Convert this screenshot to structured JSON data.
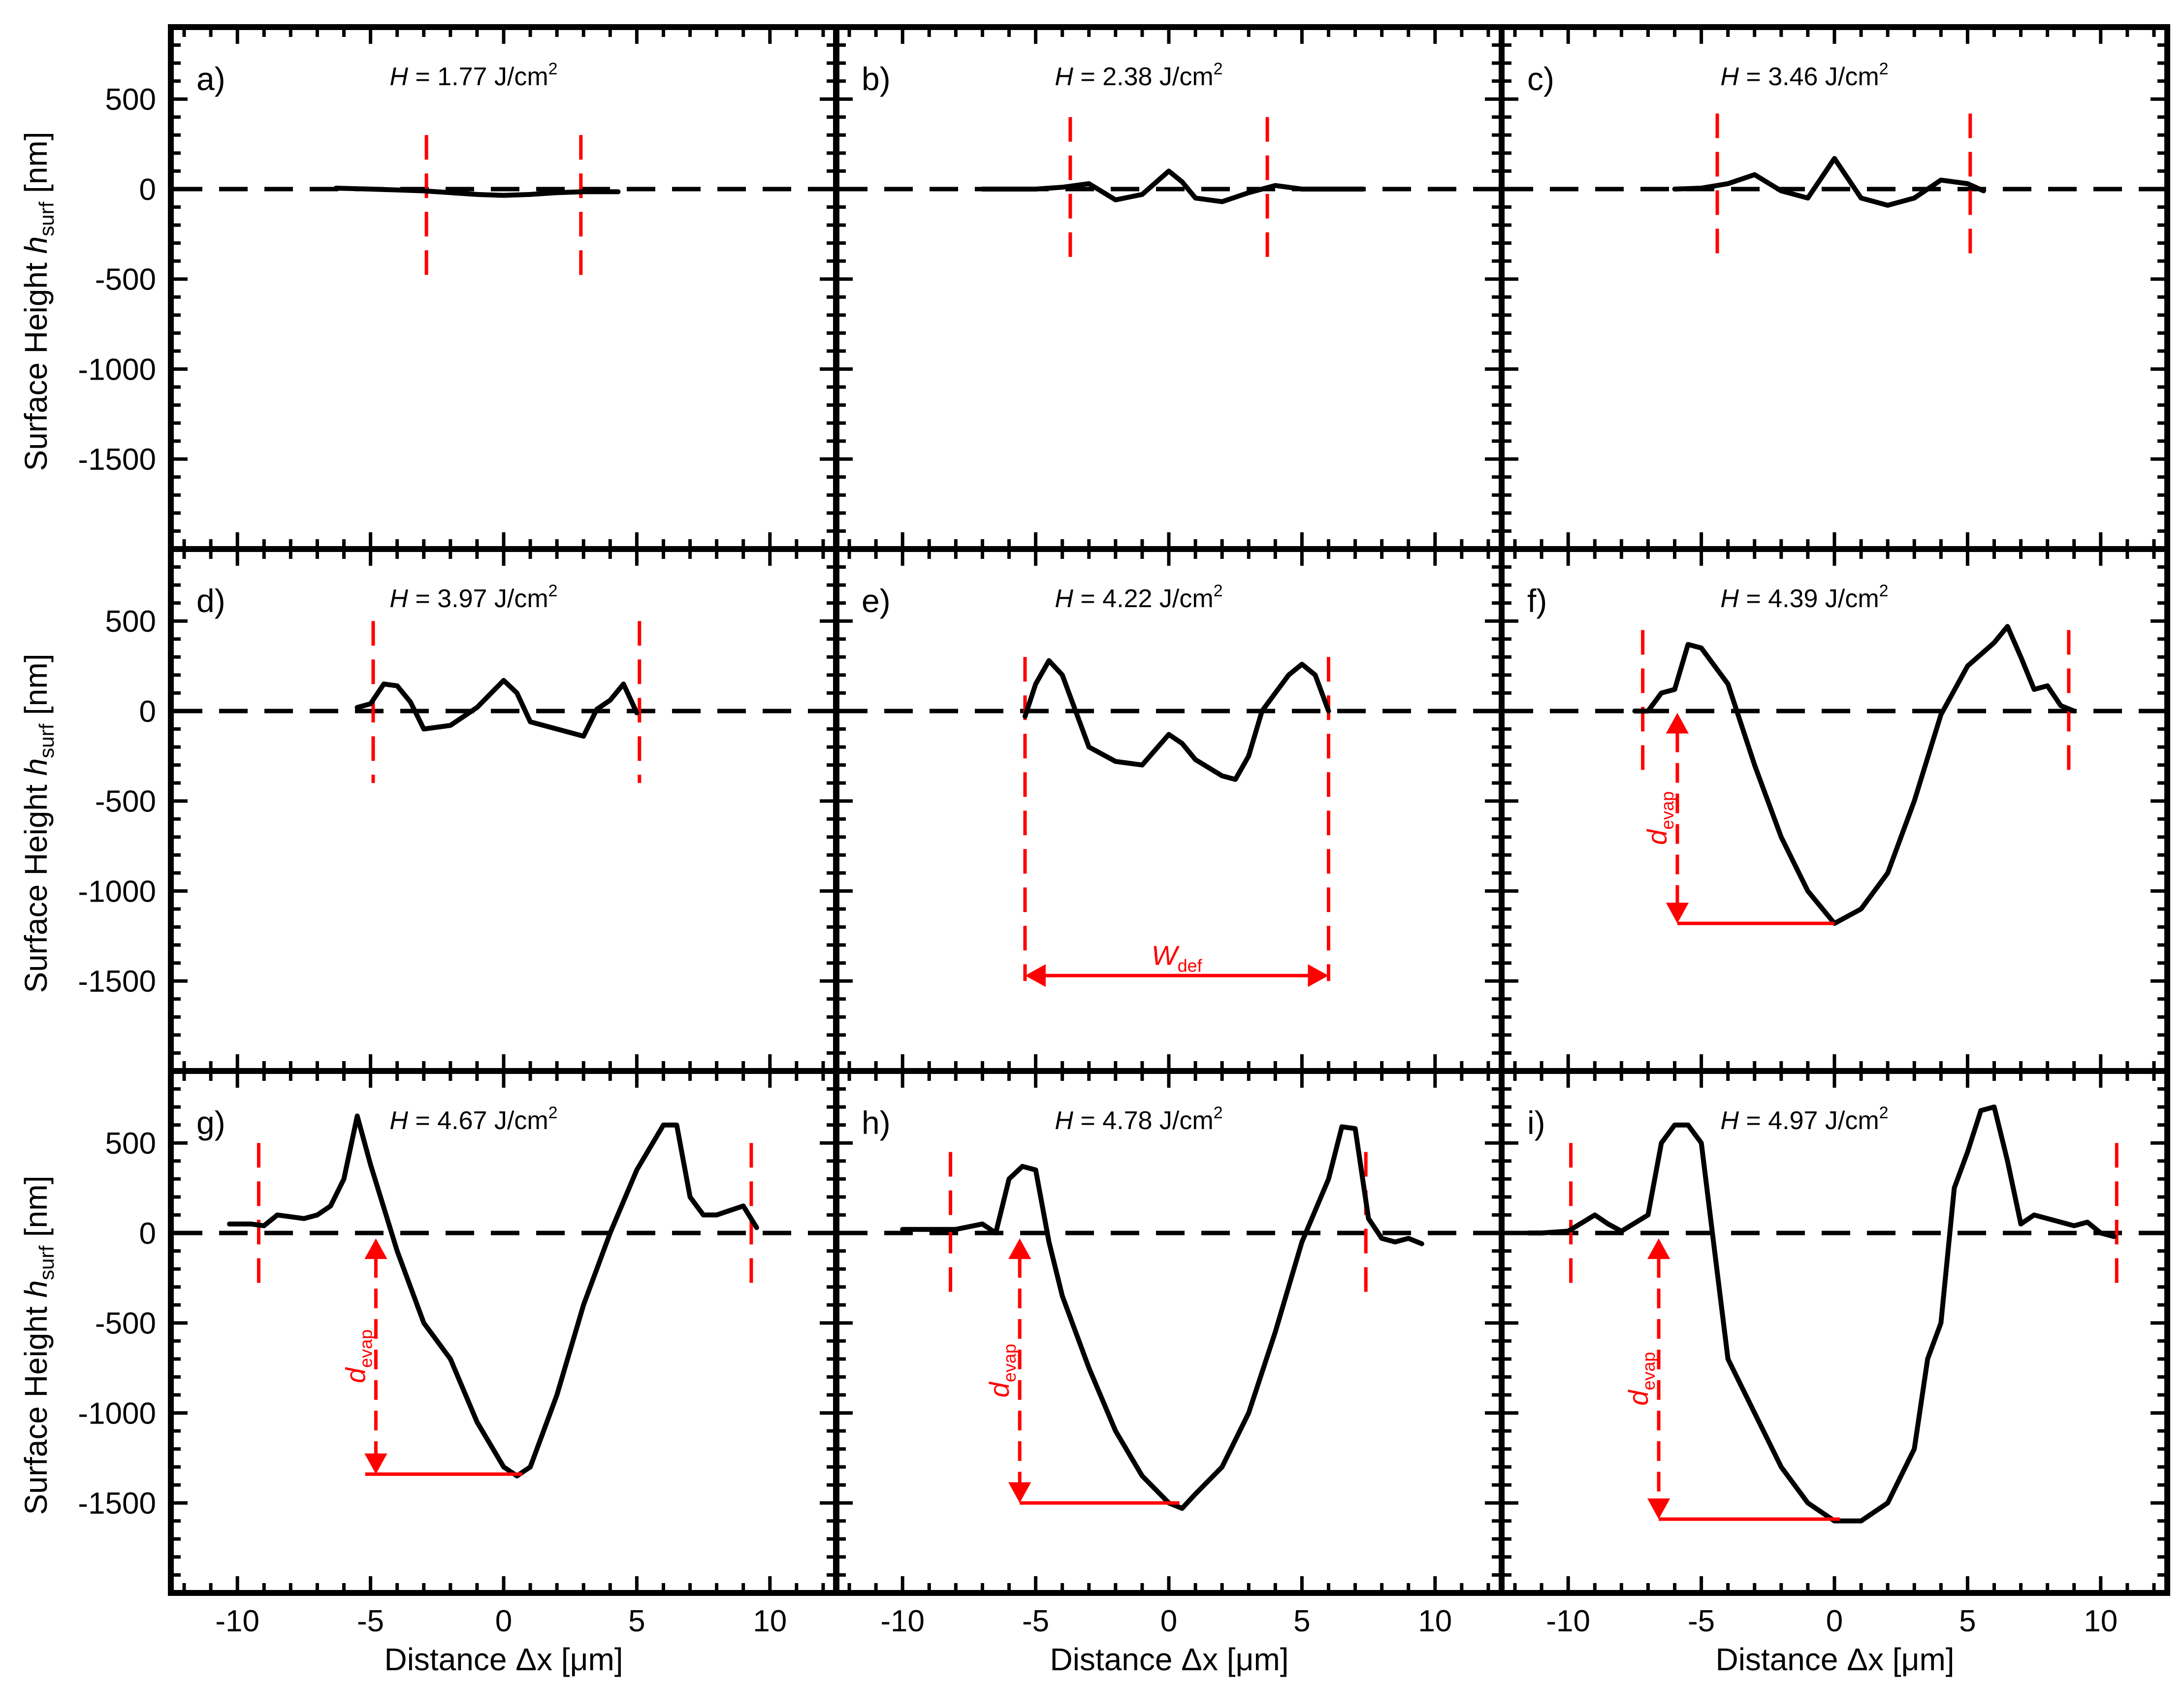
{
  "figure": {
    "ylabel_main": "Surface Height ",
    "ylabel_italic": "h",
    "ylabel_sub": "surf",
    "ylabel_unit": " [nm]",
    "xlabel_main": "Distance Δx [",
    "xlabel_mu": "μ",
    "xlabel_unit": "m]",
    "fluence_symbol": "H",
    "fluence_unit": " J/cm",
    "fluence_exp": "2",
    "w_def_main": "W",
    "w_def_sub": "def",
    "d_evap_main": "d",
    "d_evap_sub": "evap",
    "colors": {
      "profile": "#000000",
      "annotation": "#ff0000",
      "frame": "#000000",
      "zero_line": "#000000"
    }
  },
  "chart_data": [
    {
      "type": "line",
      "panel": "a)",
      "fluence": "1.77",
      "xlim": [
        -12.5,
        12.5
      ],
      "ylim": [
        -2000,
        900
      ],
      "xticks": [
        "-10",
        "-5",
        "0",
        "5",
        "10"
      ],
      "yticks": [
        "500",
        "0",
        "-500",
        "-1000",
        "-1500"
      ],
      "zero_line": 0,
      "edges": [
        -2.9,
        2.9
      ],
      "edge_span": [
        -500,
        300
      ],
      "series": [
        {
          "x": [
            -6.3,
            -5,
            -4,
            -3,
            -2,
            -1,
            0,
            1,
            2,
            3,
            4.3
          ],
          "y": [
            5,
            0,
            -5,
            -10,
            -20,
            -30,
            -35,
            -30,
            -20,
            -15,
            -15
          ]
        }
      ]
    },
    {
      "type": "line",
      "panel": "b)",
      "fluence": "2.38",
      "xlim": [
        -12.5,
        12.5
      ],
      "ylim": [
        -2000,
        900
      ],
      "xticks": [
        "-10",
        "-5",
        "0",
        "5",
        "10"
      ],
      "yticks": [
        "500",
        "0",
        "-500",
        "-1000",
        "-1500"
      ],
      "zero_line": 0,
      "edges": [
        -3.7,
        3.7
      ],
      "edge_span": [
        -400,
        400
      ],
      "series": [
        {
          "x": [
            -7,
            -5,
            -4,
            -3,
            -2,
            -1,
            0,
            0.5,
            1,
            2,
            3,
            4,
            5,
            6,
            7.3
          ],
          "y": [
            0,
            0,
            10,
            30,
            -60,
            -30,
            100,
            40,
            -50,
            -70,
            -20,
            20,
            0,
            0,
            0
          ]
        }
      ]
    },
    {
      "type": "line",
      "panel": "c)",
      "fluence": "3.46",
      "xlim": [
        -12.5,
        12.5
      ],
      "ylim": [
        -2000,
        900
      ],
      "xticks": [
        "-10",
        "-5",
        "0",
        "5",
        "10"
      ],
      "yticks": [
        "500",
        "0",
        "-500",
        "-1000",
        "-1500"
      ],
      "zero_line": 0,
      "edges": [
        -4.4,
        5.1
      ],
      "edge_span": [
        -400,
        420
      ],
      "series": [
        {
          "x": [
            -6,
            -5,
            -4,
            -3,
            -2,
            -1,
            0,
            1,
            2,
            3,
            4,
            5,
            5.6
          ],
          "y": [
            0,
            5,
            30,
            80,
            -10,
            -50,
            170,
            -50,
            -90,
            -50,
            50,
            30,
            -10
          ]
        }
      ]
    },
    {
      "type": "line",
      "panel": "d)",
      "fluence": "3.97",
      "xlim": [
        -12.5,
        12.5
      ],
      "ylim": [
        -2000,
        900
      ],
      "xticks": [
        "-10",
        "-5",
        "0",
        "5",
        "10"
      ],
      "yticks": [
        "500",
        "0",
        "-500",
        "-1000",
        "-1500"
      ],
      "zero_line": 0,
      "edges": [
        -4.9,
        5.1
      ],
      "edge_span": [
        -400,
        500
      ],
      "series": [
        {
          "x": [
            -5.5,
            -5,
            -4.5,
            -4,
            -3.5,
            -3,
            -2,
            -1,
            0,
            0.5,
            1,
            2,
            3,
            3.5,
            4,
            4.5,
            5
          ],
          "y": [
            20,
            40,
            150,
            140,
            50,
            -100,
            -80,
            20,
            170,
            100,
            -60,
            -100,
            -140,
            10,
            60,
            150,
            -10
          ]
        }
      ]
    },
    {
      "type": "line",
      "panel": "e)",
      "fluence": "4.22",
      "xlim": [
        -12.5,
        12.5
      ],
      "ylim": [
        -2000,
        900
      ],
      "xticks": [
        "-10",
        "-5",
        "0",
        "5",
        "10"
      ],
      "yticks": [
        "500",
        "0",
        "-500",
        "-1000",
        "-1500"
      ],
      "zero_line": 0,
      "edges": [
        -5.4,
        6.0
      ],
      "edge_span": [
        -1500,
        300
      ],
      "series": [
        {
          "x": [
            -5.4,
            -5,
            -4.5,
            -4,
            -3,
            -2,
            -1,
            0,
            0.5,
            1,
            2,
            2.5,
            3,
            3.5,
            4,
            4.5,
            5,
            5.5,
            6
          ],
          "y": [
            -30,
            150,
            280,
            200,
            -200,
            -280,
            -300,
            -130,
            -180,
            -270,
            -360,
            -380,
            -250,
            0,
            100,
            200,
            260,
            200,
            0
          ]
        }
      ]
    },
    {
      "type": "line",
      "panel": "f)",
      "fluence": "4.39",
      "xlim": [
        -12.5,
        12.5
      ],
      "ylim": [
        -2000,
        900
      ],
      "xticks": [
        "-10",
        "-5",
        "0",
        "5",
        "10"
      ],
      "yticks": [
        "500",
        "0",
        "-500",
        "-1000",
        "-1500"
      ],
      "zero_line": 0,
      "edges": [
        -7.2,
        8.8
      ],
      "edge_span": [
        -400,
        450
      ],
      "series": [
        {
          "x": [
            -7.5,
            -7,
            -6.5,
            -6,
            -5.5,
            -5,
            -4,
            -3,
            -2,
            -1,
            0,
            1,
            2,
            3,
            4,
            5,
            6,
            6.5,
            7,
            7.5,
            8,
            8.5,
            9
          ],
          "y": [
            0,
            0,
            100,
            120,
            370,
            350,
            150,
            -300,
            -700,
            -1000,
            -1180,
            -1100,
            -900,
            -500,
            -20,
            250,
            380,
            470,
            300,
            120,
            140,
            30,
            0
          ]
        }
      ]
    },
    {
      "type": "line",
      "panel": "g)",
      "fluence": "4.67",
      "xlim": [
        -12.5,
        12.5
      ],
      "ylim": [
        -2000,
        900
      ],
      "xticks": [
        "-10",
        "-5",
        "0",
        "5",
        "10"
      ],
      "yticks": [
        "500",
        "0",
        "-500",
        "-1000",
        "-1500"
      ],
      "zero_line": 0,
      "edges": [
        -9.2,
        9.3
      ],
      "edge_span": [
        -350,
        500
      ],
      "series": [
        {
          "x": [
            -10.3,
            -9.5,
            -9,
            -8.5,
            -7.5,
            -7,
            -6.5,
            -6,
            -5.5,
            -5,
            -4,
            -3,
            -2,
            -1,
            0,
            0.5,
            1,
            2,
            3,
            4,
            5,
            6,
            6.5,
            7,
            7.5,
            8,
            9,
            9.5
          ],
          "y": [
            50,
            50,
            40,
            100,
            80,
            100,
            150,
            300,
            650,
            380,
            -100,
            -500,
            -700,
            -1050,
            -1300,
            -1350,
            -1300,
            -900,
            -400,
            0,
            350,
            600,
            600,
            200,
            100,
            100,
            150,
            30
          ]
        }
      ]
    },
    {
      "type": "line",
      "panel": "h)",
      "fluence": "4.78",
      "xlim": [
        -12.5,
        12.5
      ],
      "ylim": [
        -2000,
        900
      ],
      "xticks": [
        "-10",
        "-5",
        "0",
        "5",
        "10"
      ],
      "yticks": [
        "500",
        "0",
        "-500",
        "-1000",
        "-1500"
      ],
      "zero_line": 0,
      "edges": [
        -8.2,
        7.4
      ],
      "edge_span": [
        -400,
        450
      ],
      "series": [
        {
          "x": [
            -10,
            -9,
            -8,
            -7,
            -6.5,
            -6,
            -5.5,
            -5,
            -4.5,
            -4,
            -3,
            -2,
            -1,
            0,
            0.5,
            1,
            2,
            3,
            4,
            5,
            6,
            6.5,
            7,
            7.5,
            8,
            8.5,
            9,
            9.5
          ],
          "y": [
            20,
            20,
            20,
            50,
            0,
            300,
            370,
            350,
            -50,
            -350,
            -750,
            -1100,
            -1350,
            -1500,
            -1530,
            -1450,
            -1300,
            -1000,
            -550,
            -50,
            300,
            590,
            580,
            80,
            -30,
            -50,
            -30,
            -60
          ]
        }
      ]
    },
    {
      "type": "line",
      "panel": "i)",
      "fluence": "4.97",
      "xlim": [
        -12.5,
        12.5
      ],
      "ylim": [
        -2000,
        900
      ],
      "xticks": [
        "-10",
        "-5",
        "0",
        "5",
        "10"
      ],
      "yticks": [
        "500",
        "0",
        "-500",
        "-1000",
        "-1500"
      ],
      "zero_line": 0,
      "edges": [
        -9.9,
        10.6
      ],
      "edge_span": [
        -350,
        500
      ],
      "series": [
        {
          "x": [
            -11.5,
            -11,
            -10,
            -9,
            -8.5,
            -8,
            -7,
            -6.5,
            -6,
            -5.5,
            -5,
            -4.5,
            -4,
            -3,
            -2,
            -1,
            0,
            1,
            2,
            3,
            3.5,
            4,
            4.5,
            5,
            5.5,
            6,
            6.5,
            7,
            7.5,
            8,
            9,
            9.5,
            10,
            10.5
          ],
          "y": [
            0,
            0,
            10,
            100,
            50,
            10,
            100,
            500,
            600,
            600,
            500,
            -100,
            -700,
            -1000,
            -1300,
            -1500,
            -1600,
            -1600,
            -1500,
            -1200,
            -700,
            -500,
            250,
            450,
            680,
            700,
            400,
            50,
            100,
            80,
            40,
            60,
            0,
            -20
          ]
        }
      ]
    }
  ]
}
